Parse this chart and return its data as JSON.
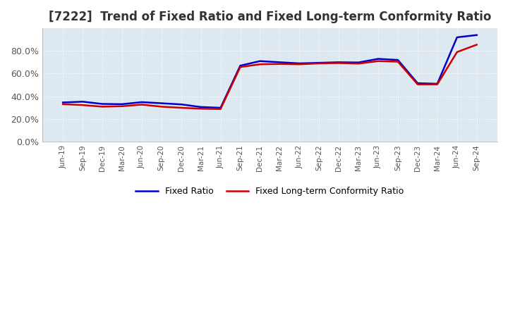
{
  "title": "[7222]  Trend of Fixed Ratio and Fixed Long-term Conformity Ratio",
  "title_fontsize": 12,
  "background_color": "#ffffff",
  "plot_bg_color": "#dde8f0",
  "grid_color": "#ffffff",
  "x_labels": [
    "Jun-19",
    "Sep-19",
    "Dec-19",
    "Mar-20",
    "Jun-20",
    "Sep-20",
    "Dec-20",
    "Mar-21",
    "Jun-21",
    "Sep-21",
    "Dec-21",
    "Mar-22",
    "Jun-22",
    "Sep-22",
    "Dec-22",
    "Mar-23",
    "Jun-23",
    "Sep-23",
    "Dec-23",
    "Mar-24",
    "Jun-24",
    "Sep-24"
  ],
  "fixed_ratio": [
    0.345,
    0.352,
    0.332,
    0.33,
    0.348,
    0.338,
    0.328,
    0.305,
    0.298,
    0.67,
    0.71,
    0.7,
    0.69,
    0.695,
    0.7,
    0.698,
    0.73,
    0.72,
    0.515,
    0.51,
    0.92,
    0.94
  ],
  "fixed_lt_ratio": [
    0.33,
    0.322,
    0.308,
    0.312,
    0.326,
    0.308,
    0.298,
    0.29,
    0.287,
    0.658,
    0.682,
    0.685,
    0.682,
    0.69,
    0.693,
    0.688,
    0.71,
    0.705,
    0.505,
    0.505,
    0.79,
    0.855
  ],
  "fixed_ratio_color": "#0000cc",
  "fixed_lt_ratio_color": "#cc0000",
  "ylim": [
    0.0,
    1.0
  ],
  "yticks": [
    0.0,
    0.2,
    0.4,
    0.6,
    0.8
  ],
  "legend_labels": [
    "Fixed Ratio",
    "Fixed Long-term Conformity Ratio"
  ],
  "line_width": 1.8
}
